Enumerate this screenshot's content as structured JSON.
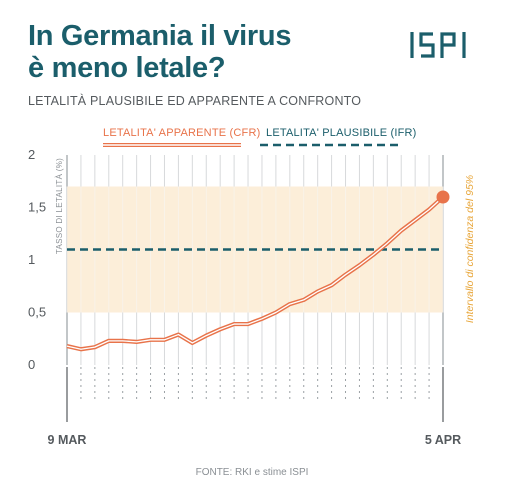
{
  "header": {
    "title_line1": "In Germania il virus",
    "title_line2": "è meno letale?",
    "subtitle": "LETALITÀ PLAUSIBILE ED APPARENTE A CONFRONTO",
    "logo_text": "ISPI"
  },
  "colors": {
    "title": "#1b5e6b",
    "cfr": "#e8734a",
    "ifr": "#1b5e6b",
    "band": "#fbe8cc",
    "ci_text": "#e8a63a"
  },
  "chart_data": {
    "type": "line",
    "title": "",
    "xlabel": "",
    "ylabel": "TASSO DI LETALITÀ (%)",
    "ylim": [
      0,
      2
    ],
    "y_ticks": [
      "2",
      "1,5",
      "1",
      "0,5",
      "0"
    ],
    "x_tick_labels": [
      "9 MAR",
      "5 APR"
    ],
    "x_range_days": [
      0,
      27
    ],
    "legend": {
      "position": "top",
      "cfr_label": "LETALITA' APPARENTE (CFR)",
      "ifr_label": "LETALITA' PLAUSIBILE (IFR)"
    },
    "series": [
      {
        "name": "LETALITA' APPARENTE (CFR)",
        "style": "solid-double",
        "x": [
          0,
          1,
          2,
          3,
          4,
          5,
          6,
          7,
          8,
          9,
          10,
          11,
          12,
          13,
          14,
          15,
          16,
          17,
          18,
          19,
          20,
          21,
          22,
          23,
          24,
          25,
          26,
          27
        ],
        "values": [
          0.18,
          0.15,
          0.17,
          0.23,
          0.23,
          0.22,
          0.24,
          0.24,
          0.29,
          0.21,
          0.28,
          0.34,
          0.39,
          0.39,
          0.44,
          0.5,
          0.58,
          0.62,
          0.7,
          0.76,
          0.86,
          0.95,
          1.05,
          1.16,
          1.28,
          1.38,
          1.48,
          1.6
        ]
      },
      {
        "name": "LETALITA' PLAUSIBILE (IFR)",
        "style": "dashed",
        "x": [
          0,
          27
        ],
        "values": [
          1.1,
          1.1
        ]
      }
    ],
    "confidence_interval": {
      "label": "Intervallo di confidenza del 95%",
      "low": 0.5,
      "high": 1.7
    },
    "grid": "vertical",
    "source": "FONTE: RKI e stime ISPI"
  }
}
